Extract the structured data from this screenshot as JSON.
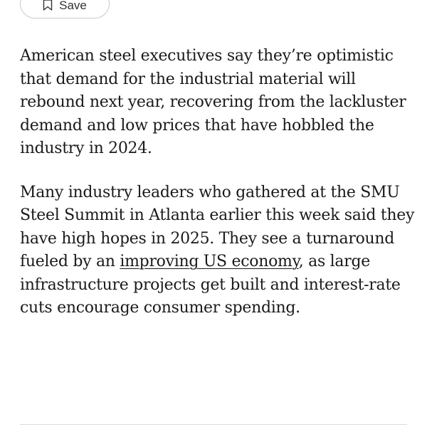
{
  "toolbar": {
    "save_label": "Save",
    "save_icon": "bookmark-icon"
  },
  "article": {
    "paragraphs": [
      {
        "text": "American steel executives say they’re optimistic that demand for the industrial material will rebound next year, recovering from the lackluster demand and low prices that have hobbled the industry in 2024."
      },
      {
        "text_before": "Many industry leaders who gathered at the SMU Steel Summit in Atlanta earlier this week said they have high hopes in 2025. They see a turnaround fueled by an ",
        "link_text": "improving US economy",
        "text_after": ", as large infrastructure projects get built and interest-rate cuts encourage consumer spending."
      }
    ]
  }
}
